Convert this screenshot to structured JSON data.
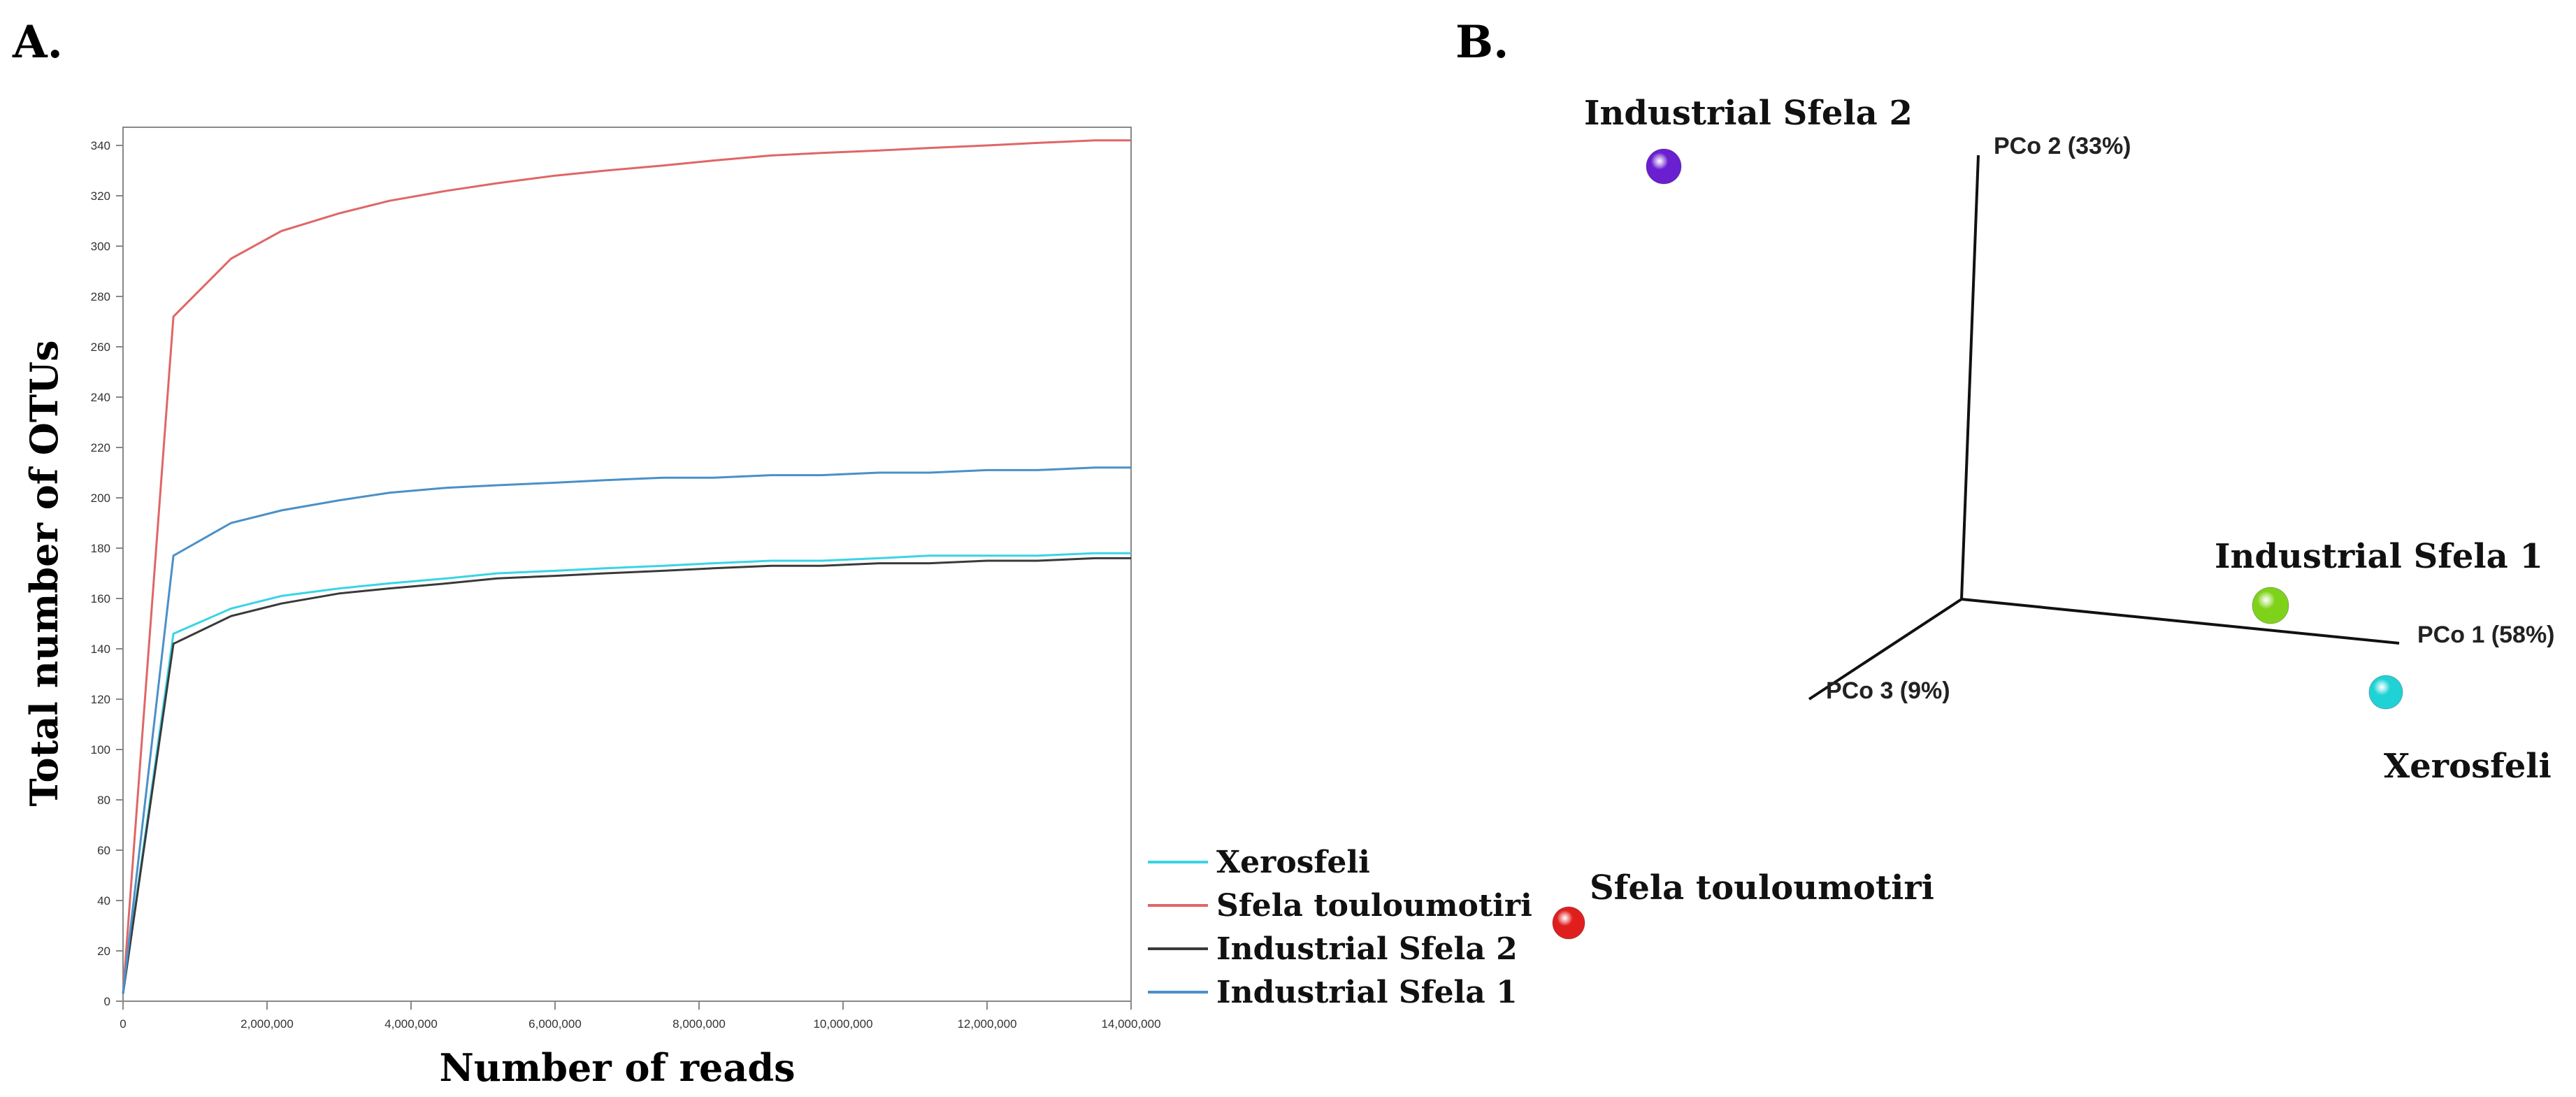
{
  "panel_a": {
    "label": "A."
  },
  "panel_b": {
    "label": "B."
  },
  "chart_data": [
    {
      "type": "line",
      "title": "",
      "xlabel": "Number of reads",
      "ylabel": "Total number of OTUs",
      "xlim": [
        0,
        14000000
      ],
      "ylim": [
        0,
        350
      ],
      "x_ticks": [
        0,
        2000000,
        4000000,
        6000000,
        8000000,
        10000000,
        12000000,
        14000000
      ],
      "x_tick_labels": [
        "0",
        "2,000,000",
        "4,000,000",
        "6,000,000",
        "8,000,000",
        "10,000,000",
        "12,000,000",
        "14,000,000"
      ],
      "y_ticks": [
        0,
        20,
        40,
        60,
        80,
        100,
        120,
        140,
        160,
        180,
        200,
        220,
        240,
        260,
        280,
        300,
        320,
        340
      ],
      "x": [
        0,
        700000,
        1500000,
        2200000,
        3000000,
        3700000,
        4500000,
        5200000,
        6000000,
        6700000,
        7500000,
        8200000,
        9000000,
        9700000,
        10500000,
        11200000,
        12000000,
        12700000,
        13500000,
        14000000
      ],
      "legend_position": "bottom-right-outside",
      "series": [
        {
          "name": "Xerosfeli",
          "color": "#3ad4e6",
          "values": [
            3,
            146,
            156,
            161,
            164,
            166,
            168,
            170,
            171,
            172,
            173,
            174,
            175,
            175,
            176,
            177,
            177,
            177,
            178,
            178
          ]
        },
        {
          "name": "Sfela touloumotiri",
          "color": "#e06666",
          "values": [
            3,
            272,
            295,
            306,
            313,
            318,
            322,
            325,
            328,
            330,
            332,
            334,
            336,
            337,
            338,
            339,
            340,
            341,
            342,
            342
          ]
        },
        {
          "name": "Industrial Sfela 2",
          "color": "#3a3a3a",
          "values": [
            3,
            142,
            153,
            158,
            162,
            164,
            166,
            168,
            169,
            170,
            171,
            172,
            173,
            173,
            174,
            174,
            175,
            175,
            176,
            176
          ]
        },
        {
          "name": "Industrial Sfela 1",
          "color": "#4a90c8",
          "values": [
            3,
            177,
            190,
            195,
            199,
            202,
            204,
            205,
            206,
            207,
            208,
            208,
            209,
            209,
            210,
            210,
            211,
            211,
            212,
            212
          ]
        }
      ]
    },
    {
      "type": "scatter",
      "subtype": "3d-pcoa",
      "axes": [
        {
          "name": "PCo 1 (58%)"
        },
        {
          "name": "PCo 2 (33%)"
        },
        {
          "name": "PCo 3 (9%)"
        }
      ],
      "points": [
        {
          "name": "Industrial Sfela 2",
          "color": "#6a1fd0"
        },
        {
          "name": "Industrial Sfela 1",
          "color": "#7fd21a"
        },
        {
          "name": "Xerosfeli",
          "color": "#1fd2d6"
        },
        {
          "name": "Sfela touloumotiri",
          "color": "#e01e1e"
        }
      ]
    }
  ]
}
